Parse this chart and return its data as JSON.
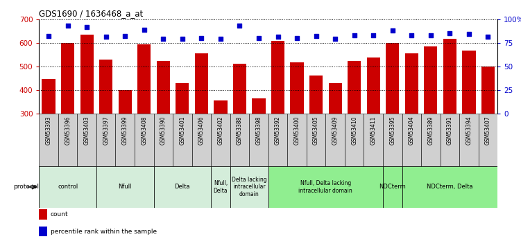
{
  "title": "GDS1690 / 1636468_a_at",
  "samples": [
    "GSM53393",
    "GSM53396",
    "GSM53403",
    "GSM53397",
    "GSM53399",
    "GSM53408",
    "GSM53390",
    "GSM53401",
    "GSM53406",
    "GSM53402",
    "GSM53388",
    "GSM53398",
    "GSM53392",
    "GSM53400",
    "GSM53405",
    "GSM53409",
    "GSM53410",
    "GSM53411",
    "GSM53395",
    "GSM53404",
    "GSM53389",
    "GSM53391",
    "GSM53394",
    "GSM53407"
  ],
  "counts": [
    447,
    600,
    635,
    530,
    398,
    592,
    522,
    430,
    555,
    355,
    512,
    363,
    607,
    517,
    460,
    428,
    523,
    537,
    600,
    555,
    585,
    617,
    567,
    498
  ],
  "percentiles": [
    82,
    93,
    92,
    81,
    82,
    89,
    79,
    79,
    80,
    79,
    93,
    80,
    81,
    80,
    82,
    79,
    83,
    83,
    88,
    83,
    83,
    85,
    84,
    81
  ],
  "bar_color": "#cc0000",
  "dot_color": "#0000cc",
  "ylim_left": [
    300,
    700
  ],
  "ylim_right": [
    0,
    100
  ],
  "yticks_left": [
    300,
    400,
    500,
    600,
    700
  ],
  "yticks_right": [
    0,
    25,
    50,
    75,
    100
  ],
  "groups": [
    {
      "label": "control",
      "start": 0,
      "end": 2,
      "color": "#d4edda"
    },
    {
      "label": "Nfull",
      "start": 3,
      "end": 5,
      "color": "#d4edda"
    },
    {
      "label": "Delta",
      "start": 6,
      "end": 8,
      "color": "#d4edda"
    },
    {
      "label": "Nfull,\nDelta",
      "start": 9,
      "end": 9,
      "color": "#d4edda"
    },
    {
      "label": "Delta lacking\nintracellular\ndomain",
      "start": 10,
      "end": 11,
      "color": "#d4edda"
    },
    {
      "label": "Nfull, Delta lacking\nintracellular domain",
      "start": 12,
      "end": 17,
      "color": "#90ee90"
    },
    {
      "label": "NDCterm",
      "start": 18,
      "end": 18,
      "color": "#90ee90"
    },
    {
      "label": "NDCterm, Delta",
      "start": 19,
      "end": 23,
      "color": "#90ee90"
    }
  ],
  "xtick_bg": "#d0d0d0",
  "background_color": "#ffffff",
  "tick_label_color_left": "#cc0000",
  "tick_label_color_right": "#0000cc",
  "legend_items": [
    {
      "color": "#cc0000",
      "label": "count"
    },
    {
      "color": "#0000cc",
      "label": "percentile rank within the sample"
    }
  ]
}
